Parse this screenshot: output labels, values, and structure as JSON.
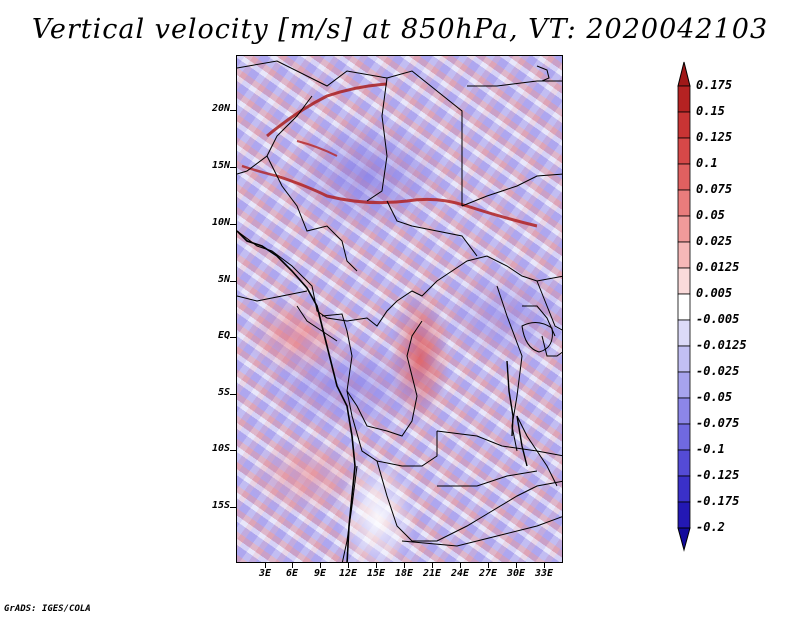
{
  "title": "Vertical velocity [m/s] at 850hPa, VT: 2020042103",
  "credit": "GrADS: IGES/COLA",
  "lat_labels": [
    "20N",
    "15N",
    "10N",
    "5N",
    "EQ",
    "5S",
    "10S",
    "15S"
  ],
  "lon_labels": [
    "3E",
    "6E",
    "9E",
    "12E",
    "15E",
    "18E",
    "21E",
    "24E",
    "27E",
    "30E",
    "33E"
  ],
  "colorbar": {
    "labels": [
      "0.175",
      "0.15",
      "0.125",
      "0.1",
      "0.075",
      "0.05",
      "0.025",
      "0.0125",
      "0.005",
      "-0.005",
      "-0.0125",
      "-0.025",
      "-0.05",
      "-0.075",
      "-0.1",
      "-0.125",
      "-0.175",
      "-0.2"
    ],
    "colors": [
      "#a01818",
      "#b52222",
      "#c83434",
      "#d64848",
      "#e06060",
      "#ea7c7c",
      "#f19a9a",
      "#f6b8b8",
      "#fadada",
      "#ffffff",
      "#dcdaf8",
      "#c2bff3",
      "#a7a3ee",
      "#8c86e8",
      "#7069e0",
      "#544bd6",
      "#3a30c8",
      "#2318b4",
      "#120a9c"
    ]
  }
}
